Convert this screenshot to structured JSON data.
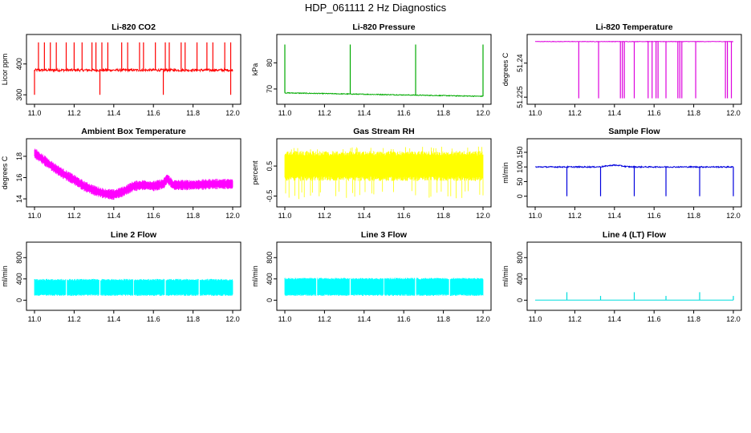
{
  "title": "HDP_061111  2 Hz Diagnostics",
  "chart_data": [
    {
      "type": "line",
      "title": "Li-820 CO2",
      "ylabel": "Licor ppm",
      "color": "#ff0000",
      "xlim": [
        11.0,
        12.0
      ],
      "ylim": [
        285,
        480
      ],
      "xticks": [
        "11.0",
        "11.2",
        "11.4",
        "11.6",
        "11.8",
        "12.0"
      ],
      "yticks": [
        300,
        400
      ],
      "series": [
        {
          "name": "CO2",
          "baseline": 380,
          "noise": 4,
          "spikes_up": [
            11.02,
            11.05,
            11.08,
            11.11,
            11.16,
            11.2,
            11.24,
            11.29,
            11.31,
            11.34,
            11.37,
            11.44,
            11.47,
            11.53,
            11.55,
            11.61,
            11.66,
            11.68,
            11.74,
            11.76,
            11.82,
            11.87,
            11.9,
            11.96,
            11.99
          ],
          "spike_up_value": 470,
          "spikes_down": [
            11.0,
            11.33,
            11.65,
            11.99
          ],
          "spike_down_value": 300
        }
      ]
    },
    {
      "type": "line",
      "title": "Li-820 Pressure",
      "ylabel": "kPa",
      "color": "#00aa00",
      "xlim": [
        11.0,
        12.0
      ],
      "ylim": [
        66,
        89
      ],
      "xticks": [
        "11.0",
        "11.2",
        "11.4",
        "11.6",
        "11.8",
        "12.0"
      ],
      "yticks": [
        70,
        80
      ],
      "series": [
        {
          "name": "Pressure",
          "start": 68.5,
          "end": 67.2,
          "noise": 0.15,
          "spikes_up": [
            11.0,
            11.33,
            11.66,
            12.0
          ],
          "spike_up_value": 87
        }
      ]
    },
    {
      "type": "line",
      "title": "Li-820 Temperature",
      "ylabel": "degrees C",
      "color": "#dd00dd",
      "xlim": [
        11.0,
        12.0
      ],
      "ylim": [
        51.224,
        51.2505
      ],
      "xticks": [
        "11.0",
        "11.2",
        "11.4",
        "11.6",
        "11.8",
        "12.0"
      ],
      "yticks": [
        51.225,
        51.24
      ],
      "series": [
        {
          "name": "Temperature",
          "baseline": 51.2495,
          "noise": 0.0001,
          "dips": [
            11.22,
            11.32,
            11.43,
            11.44,
            11.45,
            11.5,
            11.57,
            11.59,
            11.61,
            11.62,
            11.66,
            11.72,
            11.73,
            11.74,
            11.81,
            11.96,
            11.97,
            11.99
          ],
          "dip_value": 51.2245
        }
      ]
    },
    {
      "type": "line",
      "title": "Ambient Box Temperature",
      "ylabel": "degrees C",
      "color": "#ff00ff",
      "xlim": [
        11.0,
        12.0
      ],
      "ylim": [
        13.7,
        19.2
      ],
      "xticks": [
        "11.0",
        "11.2",
        "11.4",
        "11.6",
        "11.8",
        "12.0"
      ],
      "yticks": [
        14,
        16,
        18
      ],
      "series": [
        {
          "name": "Ambient",
          "x": [
            11.0,
            11.05,
            11.1,
            11.15,
            11.2,
            11.25,
            11.3,
            11.35,
            11.4,
            11.45,
            11.5,
            11.55,
            11.6,
            11.65,
            11.67,
            11.7,
            11.8,
            11.9,
            12.0
          ],
          "y": [
            18.3,
            17.6,
            16.9,
            16.3,
            15.8,
            15.2,
            14.8,
            14.5,
            14.4,
            14.7,
            15.2,
            15.3,
            15.2,
            15.4,
            15.9,
            15.3,
            15.3,
            15.4,
            15.4
          ],
          "band": 0.45
        }
      ]
    },
    {
      "type": "line",
      "title": "Gas Stream RH",
      "ylabel": "percent",
      "color": "#ffff00",
      "xlim": [
        11.0,
        12.0
      ],
      "ylim": [
        -0.7,
        1.25
      ],
      "xticks": [
        "11.0",
        "11.2",
        "11.4",
        "11.6",
        "11.8",
        "12.0"
      ],
      "yticks": [
        -0.5,
        0.5
      ],
      "yticklabels": [
        "-0.5",
        "0.5"
      ],
      "series": [
        {
          "name": "RH",
          "band_low": 0.0,
          "band_high": 1.0,
          "outlier_low": -0.6,
          "outlier_high": 1.15
        }
      ]
    },
    {
      "type": "line",
      "title": "Sample Flow",
      "ylabel": "ml/min",
      "color": "#0000dd",
      "xlim": [
        11.0,
        12.0
      ],
      "ylim": [
        -20,
        180
      ],
      "xticks": [
        "11.0",
        "11.2",
        "11.4",
        "11.6",
        "11.8",
        "12.0"
      ],
      "yticks": [
        0,
        50,
        100,
        150
      ],
      "series": [
        {
          "name": "Sample",
          "baseline": 100,
          "noise": 2,
          "bump_center": 11.4,
          "bump_height": 6,
          "dips": [
            11.16,
            11.33,
            11.5,
            11.66,
            11.83,
            12.0
          ],
          "dip_value": 0
        }
      ]
    },
    {
      "type": "line",
      "title": "Line 2 Flow",
      "ylabel": "ml/min",
      "color": "#00ffff",
      "xlim": [
        11.0,
        12.0
      ],
      "ylim": [
        -100,
        1000
      ],
      "xticks": [
        "11.0",
        "11.2",
        "11.4",
        "11.6",
        "11.8",
        "12.0"
      ],
      "yticks": [
        0,
        400,
        800
      ],
      "series": [
        {
          "name": "Line 2",
          "band_low": 80,
          "band_high": 400,
          "gaps": [
            11.16,
            11.33,
            11.5,
            11.66,
            11.83
          ]
        }
      ]
    },
    {
      "type": "line",
      "title": "Line 3 Flow",
      "ylabel": "ml/min",
      "color": "#00ffff",
      "xlim": [
        11.0,
        12.0
      ],
      "ylim": [
        -100,
        1000
      ],
      "xticks": [
        "11.0",
        "11.2",
        "11.4",
        "11.6",
        "11.8",
        "12.0"
      ],
      "yticks": [
        0,
        400,
        800
      ],
      "series": [
        {
          "name": "Line 3",
          "band_low": 80,
          "band_high": 420,
          "gaps": [
            11.16,
            11.33,
            11.5,
            11.66,
            11.83
          ]
        }
      ]
    },
    {
      "type": "line",
      "title": "Line 4 (LT) Flow",
      "ylabel": "ml/min",
      "color": "#00dddd",
      "xlim": [
        11.0,
        12.0
      ],
      "ylim": [
        -100,
        1000
      ],
      "xticks": [
        "11.0",
        "11.2",
        "11.4",
        "11.6",
        "11.8",
        "12.0"
      ],
      "yticks": [
        0,
        400,
        800
      ],
      "series": [
        {
          "name": "Line 4",
          "baseline": 2,
          "spikes_up": [
            11.16,
            11.33,
            11.5,
            11.66,
            11.83,
            12.0
          ],
          "spike_up_values": [
            150,
            80,
            150,
            80,
            150,
            80
          ]
        }
      ]
    }
  ]
}
